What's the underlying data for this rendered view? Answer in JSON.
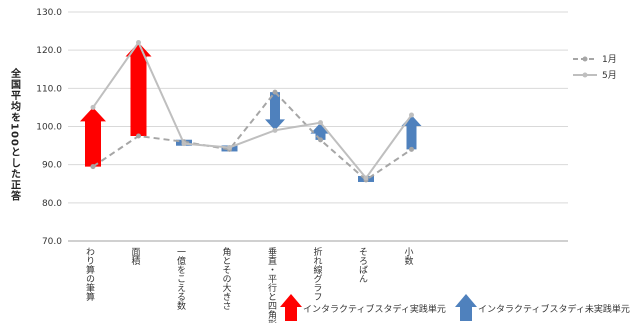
{
  "chart_data": {
    "type": "line",
    "ylabel": "全国平均を100とした正答",
    "ylim": [
      70,
      130
    ],
    "yticks": [
      "70.0",
      "80.0",
      "90.0",
      "100.0",
      "110.0",
      "120.0",
      "130.0"
    ],
    "grid": true,
    "categories": [
      "わり算の筆算",
      "面積",
      "一億をこえる数",
      "角とその大きさ",
      "垂直・平行と四角形",
      "折れ線グラフ",
      "そろばん",
      "小数"
    ],
    "series": [
      {
        "name": "1月",
        "style": "dashed",
        "color": "#a6a6a6",
        "values": [
          89.5,
          97.5,
          96.0,
          94.0,
          109.0,
          96.5,
          86.0,
          94.0
        ]
      },
      {
        "name": "5月",
        "style": "solid",
        "color": "#bfbfbf",
        "values": [
          105.0,
          122.0,
          95.5,
          94.5,
          99.0,
          101.0,
          86.5,
          103.0
        ]
      }
    ],
    "legend_position": "right",
    "arrows": [
      {
        "category": "わり算の筆算",
        "from": 89.5,
        "to": 105.0,
        "kind": "red"
      },
      {
        "category": "面積",
        "from": 97.5,
        "to": 122.0,
        "kind": "red"
      },
      {
        "category": "一億をこえる数",
        "from": 96.0,
        "to": 95.5,
        "kind": "blue"
      },
      {
        "category": "角とその大きさ",
        "from": 94.0,
        "to": 94.5,
        "kind": "blue"
      },
      {
        "category": "垂直・平行と四角形",
        "from": 109.0,
        "to": 99.0,
        "kind": "blue"
      },
      {
        "category": "折れ線グラフ",
        "from": 96.5,
        "to": 101.0,
        "kind": "blue"
      },
      {
        "category": "そろばん",
        "from": 86.0,
        "to": 86.5,
        "kind": "blue"
      },
      {
        "category": "小数",
        "from": 94.0,
        "to": 103.0,
        "kind": "blue"
      }
    ],
    "arrow_legend": [
      {
        "kind": "red",
        "label": "インタラクティブスタディ実践単元"
      },
      {
        "kind": "blue",
        "label": "インタラクティブスタディ未実践単元"
      }
    ],
    "colors": {
      "red": "#ff0000",
      "blue": "#4f81bd"
    }
  }
}
